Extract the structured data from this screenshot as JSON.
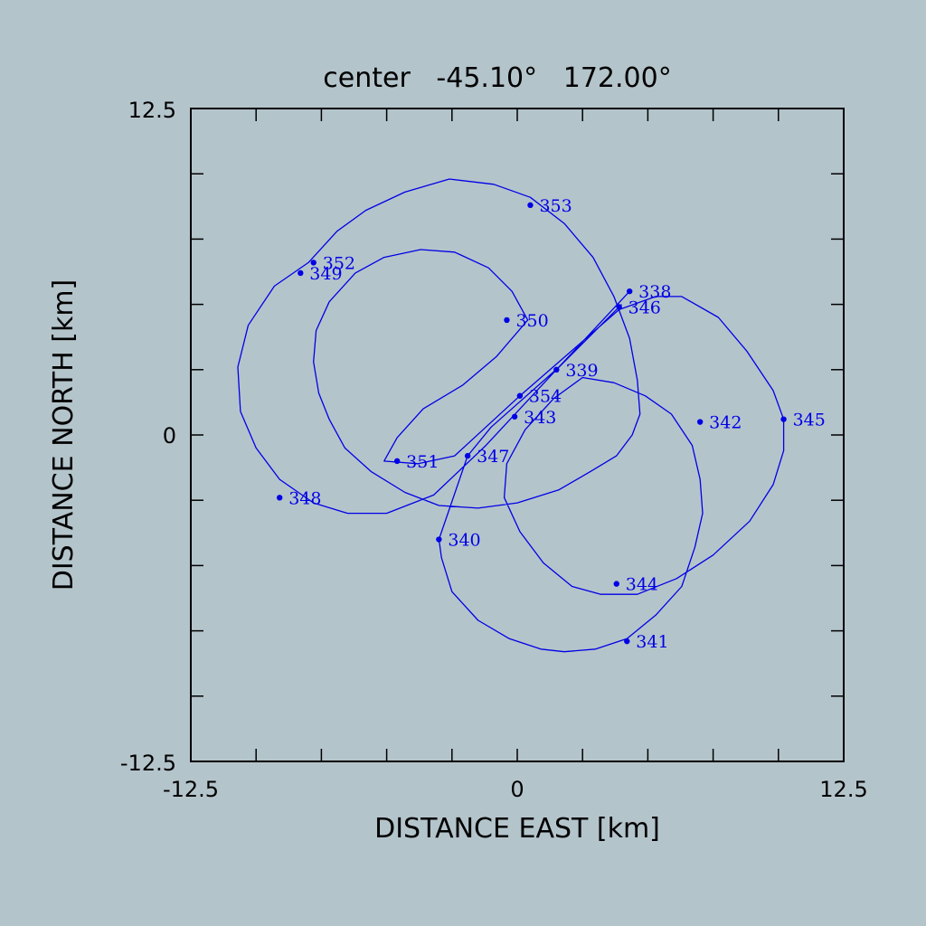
{
  "chart_data": {
    "type": "line",
    "title": "center   -45.10°   172.00°",
    "xlabel": "DISTANCE EAST [km]",
    "ylabel": "DISTANCE NORTH [km]",
    "xlim": [
      -12.5,
      12.5
    ],
    "ylim": [
      -12.5,
      12.5
    ],
    "x_tick_labels": [
      "-12.5",
      "0",
      "12.5"
    ],
    "y_tick_labels": [
      "12.5",
      "0",
      "-12.5"
    ],
    "grid": false,
    "series_color": "#0000e6",
    "track": [
      {
        "x": 4.3,
        "y": 5.5
      },
      {
        "x": 1.5,
        "y": 2.5
      },
      {
        "x": -1.2,
        "y": -0.4
      },
      {
        "x": -3.2,
        "y": -2.3
      },
      {
        "x": -5.0,
        "y": -3.0
      },
      {
        "x": -6.5,
        "y": -3.0
      },
      {
        "x": -7.8,
        "y": -2.6
      },
      {
        "x": -9.1,
        "y": -1.7
      },
      {
        "x": -10.0,
        "y": -0.5
      },
      {
        "x": -10.6,
        "y": 0.9
      },
      {
        "x": -10.7,
        "y": 2.6
      },
      {
        "x": -10.3,
        "y": 4.2
      },
      {
        "x": -9.3,
        "y": 5.7
      },
      {
        "x": -8.0,
        "y": 6.6
      },
      {
        "x": -6.9,
        "y": 7.8
      },
      {
        "x": -5.8,
        "y": 8.6
      },
      {
        "x": -4.3,
        "y": 9.3
      },
      {
        "x": -2.6,
        "y": 9.8
      },
      {
        "x": -0.9,
        "y": 9.6
      },
      {
        "x": 0.5,
        "y": 9.1
      },
      {
        "x": 1.8,
        "y": 8.1
      },
      {
        "x": 2.9,
        "y": 6.8
      },
      {
        "x": 3.7,
        "y": 5.3
      },
      {
        "x": 4.3,
        "y": 3.7
      },
      {
        "x": 4.6,
        "y": 2.1
      },
      {
        "x": 4.7,
        "y": 0.8
      },
      {
        "x": 4.4,
        "y": 0.0
      },
      {
        "x": 3.8,
        "y": -0.8
      },
      {
        "x": 2.8,
        "y": -1.4
      },
      {
        "x": 1.6,
        "y": -2.1
      },
      {
        "x": 0.0,
        "y": -2.6
      },
      {
        "x": -1.5,
        "y": -2.8
      },
      {
        "x": -3.0,
        "y": -2.7
      },
      {
        "x": -4.3,
        "y": -2.2
      },
      {
        "x": -5.6,
        "y": -1.4
      },
      {
        "x": -6.6,
        "y": -0.5
      },
      {
        "x": -7.2,
        "y": 0.6
      },
      {
        "x": -7.6,
        "y": 1.6
      },
      {
        "x": -7.8,
        "y": 2.8
      },
      {
        "x": -7.7,
        "y": 4.0
      },
      {
        "x": -7.2,
        "y": 5.1
      },
      {
        "x": -6.2,
        "y": 6.2
      },
      {
        "x": -5.1,
        "y": 6.8
      },
      {
        "x": -3.7,
        "y": 7.1
      },
      {
        "x": -2.4,
        "y": 7.0
      },
      {
        "x": -1.1,
        "y": 6.4
      },
      {
        "x": -0.2,
        "y": 5.5
      },
      {
        "x": 0.4,
        "y": 4.4
      },
      {
        "x": -0.8,
        "y": 3.0
      },
      {
        "x": -2.1,
        "y": 1.9
      },
      {
        "x": -3.6,
        "y": 1.0
      },
      {
        "x": -4.6,
        "y": -0.1
      },
      {
        "x": -5.1,
        "y": -1.0
      },
      {
        "x": -3.8,
        "y": -1.1
      },
      {
        "x": -2.4,
        "y": -0.8
      },
      {
        "x": 0.1,
        "y": 1.5
      },
      {
        "x": 3.9,
        "y": 4.8
      },
      {
        "x": 5.3,
        "y": 5.3
      },
      {
        "x": 6.3,
        "y": 5.3
      },
      {
        "x": 7.7,
        "y": 4.5
      },
      {
        "x": 8.8,
        "y": 3.2
      },
      {
        "x": 9.8,
        "y": 1.7
      },
      {
        "x": 10.2,
        "y": 0.6
      },
      {
        "x": 10.2,
        "y": -0.6
      },
      {
        "x": 9.8,
        "y": -1.9
      },
      {
        "x": 8.9,
        "y": -3.3
      },
      {
        "x": 7.5,
        "y": -4.6
      },
      {
        "x": 6.1,
        "y": -5.5
      },
      {
        "x": 4.6,
        "y": -6.1
      },
      {
        "x": 3.2,
        "y": -6.1
      },
      {
        "x": 2.1,
        "y": -5.8
      },
      {
        "x": 1.0,
        "y": -4.9
      },
      {
        "x": 0.1,
        "y": -3.7
      },
      {
        "x": -0.5,
        "y": -2.4
      },
      {
        "x": -0.4,
        "y": -1.1
      },
      {
        "x": 0.3,
        "y": 0.2
      },
      {
        "x": 1.4,
        "y": 1.4
      },
      {
        "x": 2.5,
        "y": 2.2
      },
      {
        "x": 3.7,
        "y": 2.0
      },
      {
        "x": 4.9,
        "y": 1.5
      },
      {
        "x": 5.9,
        "y": 0.8
      },
      {
        "x": 6.7,
        "y": -0.4
      },
      {
        "x": 7.0,
        "y": -1.7
      },
      {
        "x": 7.1,
        "y": -3.0
      },
      {
        "x": 6.8,
        "y": -4.3
      },
      {
        "x": 6.3,
        "y": -5.8
      },
      {
        "x": 5.3,
        "y": -6.9
      },
      {
        "x": 4.2,
        "y": -7.8
      },
      {
        "x": 3.0,
        "y": -8.2
      },
      {
        "x": 1.8,
        "y": -8.3
      },
      {
        "x": 0.9,
        "y": -8.2
      },
      {
        "x": -0.3,
        "y": -7.8
      },
      {
        "x": -1.5,
        "y": -7.1
      },
      {
        "x": -2.5,
        "y": -6.0
      },
      {
        "x": -2.9,
        "y": -4.7
      },
      {
        "x": -3.0,
        "y": -4.0
      },
      {
        "x": -1.9,
        "y": -0.8
      },
      {
        "x": -1.0,
        "y": 0.3
      },
      {
        "x": 1.6,
        "y": 2.6
      },
      {
        "x": 4.0,
        "y": 5.0
      }
    ],
    "points": [
      {
        "label": "338",
        "x": 4.3,
        "y": 5.5
      },
      {
        "label": "339",
        "x": 1.5,
        "y": 2.5
      },
      {
        "label": "340",
        "x": -3.0,
        "y": -4.0
      },
      {
        "label": "341",
        "x": 4.2,
        "y": -7.9
      },
      {
        "label": "342",
        "x": 7.0,
        "y": 0.5
      },
      {
        "label": "343",
        "x": -0.1,
        "y": 0.7
      },
      {
        "label": "344",
        "x": 3.8,
        "y": -5.7
      },
      {
        "label": "345",
        "x": 10.2,
        "y": 0.6
      },
      {
        "label": "346",
        "x": 3.9,
        "y": 4.9
      },
      {
        "label": "347",
        "x": -1.9,
        "y": -0.8
      },
      {
        "label": "348",
        "x": -9.1,
        "y": -2.4
      },
      {
        "label": "349",
        "x": -8.3,
        "y": 6.2
      },
      {
        "label": "350",
        "x": -0.4,
        "y": 4.4
      },
      {
        "label": "351",
        "x": -4.6,
        "y": -1.0
      },
      {
        "label": "352",
        "x": -7.8,
        "y": 6.6
      },
      {
        "label": "353",
        "x": 0.5,
        "y": 8.8
      },
      {
        "label": "354",
        "x": 0.1,
        "y": 1.5
      }
    ]
  }
}
